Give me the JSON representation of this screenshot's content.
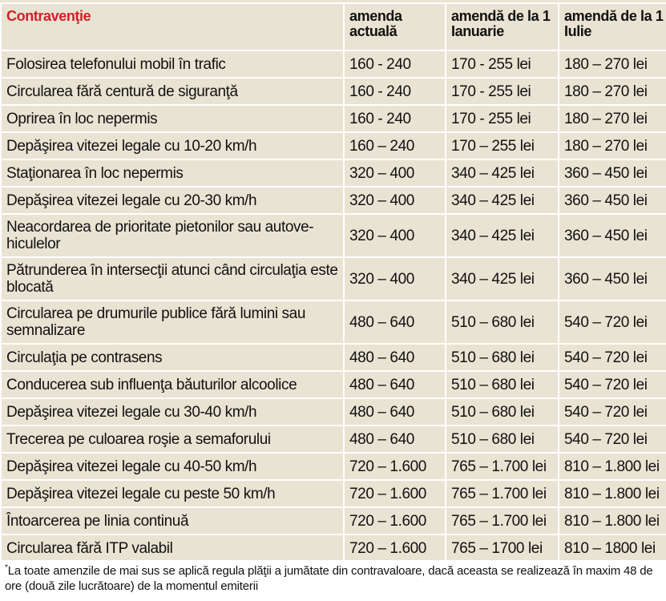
{
  "headers": {
    "offense": "Contravenţie",
    "current": "amenda actuală",
    "jan": "amendă de la 1 Ianuarie",
    "jul": "amendă de la 1 Iulie"
  },
  "rows": [
    {
      "offense": "Folosirea telefonului mobil în trafic",
      "current": "160 - 240",
      "jan": "170 - 255 lei",
      "jul": "180 – 270 lei"
    },
    {
      "offense": "Circularea fără centură de siguranţă",
      "current": "160 - 240",
      "jan": "170 - 255 lei",
      "jul": "180 – 270 lei"
    },
    {
      "offense": "Oprirea în loc nepermis",
      "current": "160 - 240",
      "jan": "170 - 255 lei",
      "jul": "180 – 270 lei"
    },
    {
      "offense": "Depăşirea vitezei legale cu 10-20 km/h",
      "current": "160 – 240",
      "jan": "170 – 255 lei",
      "jul": "180 – 270 lei"
    },
    {
      "offense": "Staţionarea în loc nepermis",
      "current": "320 – 400",
      "jan": "340 – 425 lei",
      "jul": "360 – 450 lei"
    },
    {
      "offense": "Depăşirea vitezei legale cu 20-30 km/h",
      "current": "320 – 400",
      "jan": "340 – 425 lei",
      "jul": "360 – 450 lei"
    },
    {
      "offense": "Neacordarea de prioritate pietonilor sau autove-hiculelor",
      "current": "320 – 400",
      "jan": "340 – 425 lei",
      "jul": "360 – 450 lei"
    },
    {
      "offense": "Pătrunderea în intersecţii atunci când circulaţia este blocată",
      "current": "320 – 400",
      "jan": "340 – 425 lei",
      "jul": "360 – 450 lei"
    },
    {
      "offense": "Circularea pe drumurile publice fără lumini sau semnalizare",
      "current": "480 – 640",
      "jan": "510 – 680 lei",
      "jul": "540 – 720 lei"
    },
    {
      "offense": "Circulaţia pe contrasens",
      "current": "480 – 640",
      "jan": "510 – 680 lei",
      "jul": "540 – 720 lei"
    },
    {
      "offense": "Conducerea sub influenţa băuturilor alcoolice",
      "current": "480 – 640",
      "jan": "510 – 680 lei",
      "jul": "540 – 720 lei"
    },
    {
      "offense": "Depăşirea vitezei legale cu 30-40 km/h",
      "current": "480 – 640",
      "jan": "510 – 680 lei",
      "jul": "540 – 720 lei"
    },
    {
      "offense": "Trecerea pe culoarea roşie a semaforului",
      "current": "480 – 640",
      "jan": "510 – 680 lei",
      "jul": "540 – 720 lei"
    },
    {
      "offense": "Depăşirea vitezei legale cu 40-50 km/h",
      "current": "720 – 1.600",
      "jan": "765 – 1.700 lei",
      "jul": "810 – 1.800 lei"
    },
    {
      "offense": "Depăşirea vitezei legale cu peste 50 km/h",
      "current": "720 – 1.600",
      "jan": "765 – 1.700 lei",
      "jul": "810 – 1.800 lei"
    },
    {
      "offense": "Întoarcerea pe linia continuă",
      "current": "720 – 1.600",
      "jan": "765 – 1.700 lei",
      "jul": "810 – 1.800 lei"
    },
    {
      "offense": "Circularea fără ITP valabil",
      "current": "720 – 1.600",
      "jan": "765 – 1700 lei",
      "jul": "810 – 1800 lei"
    }
  ],
  "footnote": {
    "marker": "*",
    "text": "La toate amenzile de mai sus se aplică regula plăţii a jumătate din contravaloare, dacă aceasta se realizează în maxim 48 de ore (două zile lucrătoare) de la momentul emiterii"
  },
  "colors": {
    "background": "#e9e3d3",
    "grid": "#ffffff",
    "header_accent": "#d0202a"
  }
}
